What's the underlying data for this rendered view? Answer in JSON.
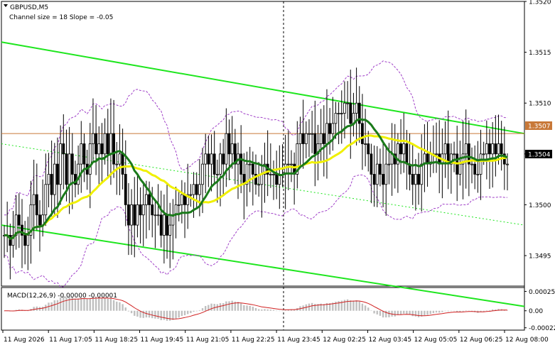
{
  "header": {
    "symbol": "GBPUSD,M5",
    "channel": "Channel size = 18 Slope = -0.05"
  },
  "price_badges": {
    "upper": "1.3507",
    "current": "1.3504"
  },
  "macd": {
    "label": "MACD(12,26,9) -0.00000 -0.00001",
    "ticks": [
      "0.00025",
      "0.00",
      "-0.00022"
    ]
  },
  "colors": {
    "candle": "#000000",
    "channel": "#1ee61e",
    "green_ma": "#1a7a1a",
    "yellow_ma": "#f0f000",
    "bollinger": "#a040c8",
    "macd_hist": "#c0c0c0",
    "macd_signal": "#d02020",
    "hline": "#c87838"
  },
  "chart_data": {
    "type": "candlestick",
    "title": "GBPUSD,M5",
    "subtitle": "Channel size = 18 Slope = -0.05",
    "ylim": [
      1.3492,
      1.352
    ],
    "y_ticks": [
      "1.3520",
      "1.3515",
      "1.3510",
      "1.3505",
      "1.3500",
      "1.3495"
    ],
    "x_labels": [
      "11 Aug 2026",
      "11 Aug 17:05",
      "11 Aug 18:25",
      "11 Aug 19:45",
      "11 Aug 21:05",
      "11 Aug 22:25",
      "11 Aug 23:45",
      "12 Aug 02:25",
      "12 Aug 03:45",
      "12 Aug 05:05",
      "12 Aug 06:25",
      "12 Aug 08:00"
    ],
    "horizontal_level": 1.3507,
    "close_series": [
      1.3497,
      1.3497,
      1.3496,
      1.3497,
      1.3499,
      1.3498,
      1.3497,
      1.3496,
      1.3497,
      1.35,
      1.3501,
      1.3499,
      1.3498,
      1.3499,
      1.3502,
      1.3503,
      1.3501,
      1.3504,
      1.3502,
      1.3506,
      1.3505,
      1.3502,
      1.3505,
      1.3503,
      1.3502,
      1.3504,
      1.3506,
      1.3504,
      1.3503,
      1.3506,
      1.3507,
      1.3505,
      1.3506,
      1.3505,
      1.3507,
      1.3505,
      1.3507,
      1.3504,
      1.3504,
      1.3505,
      1.3503,
      1.35,
      1.3498,
      1.35,
      1.3498,
      1.35,
      1.3499,
      1.35,
      1.3501,
      1.35,
      1.3499,
      1.3499,
      1.3499,
      1.3497,
      1.3499,
      1.3497,
      1.3498,
      1.3499,
      1.35,
      1.35,
      1.3501,
      1.35,
      1.3501,
      1.3501,
      1.3502,
      1.3501,
      1.3502,
      1.3504,
      1.3505,
      1.3504,
      1.3505,
      1.3503,
      1.3503,
      1.3505,
      1.3504,
      1.3507,
      1.3505,
      1.3506,
      1.3504,
      1.3505,
      1.3503,
      1.3502,
      1.3504,
      1.3504,
      1.3503,
      1.3502,
      1.3502,
      1.3503,
      1.3504,
      1.3503,
      1.3503,
      1.3503,
      1.3502,
      1.3503,
      1.3503,
      1.3504,
      1.3504,
      1.3504,
      1.3503,
      1.3506,
      1.3507,
      1.3506,
      1.3507,
      1.3507,
      1.3507,
      1.3505,
      1.3506,
      1.3507,
      1.3506,
      1.3508,
      1.3507,
      1.3508,
      1.3509,
      1.3509,
      1.3509,
      1.351,
      1.351,
      1.3508,
      1.3509,
      1.351,
      1.3508,
      1.3506,
      1.3506,
      1.3505,
      1.3503,
      1.3502,
      1.3504,
      1.3503,
      1.3502,
      1.3504,
      1.3504,
      1.3505,
      1.3504,
      1.3506,
      1.3505,
      1.3506,
      1.3504,
      1.3503,
      1.3502,
      1.3503,
      1.3502,
      1.3504,
      1.3505,
      1.3504,
      1.3505,
      1.3505,
      1.3505,
      1.3504,
      1.3505,
      1.3506,
      1.3504,
      1.3505,
      1.3505,
      1.3503,
      1.3504,
      1.3505,
      1.3506,
      1.3504,
      1.3504,
      1.3503,
      1.3503,
      1.3505,
      1.3505,
      1.3506,
      1.3505,
      1.3506,
      1.3505,
      1.3506,
      1.3505,
      1.3504,
      1.3504
    ],
    "channel_upper": {
      "from": 1.3516,
      "to": 1.3507
    },
    "channel_lower": {
      "from": 1.3498,
      "to": 1.349
    },
    "channel_mid": {
      "from": 1.3506,
      "to": 1.3498
    }
  }
}
